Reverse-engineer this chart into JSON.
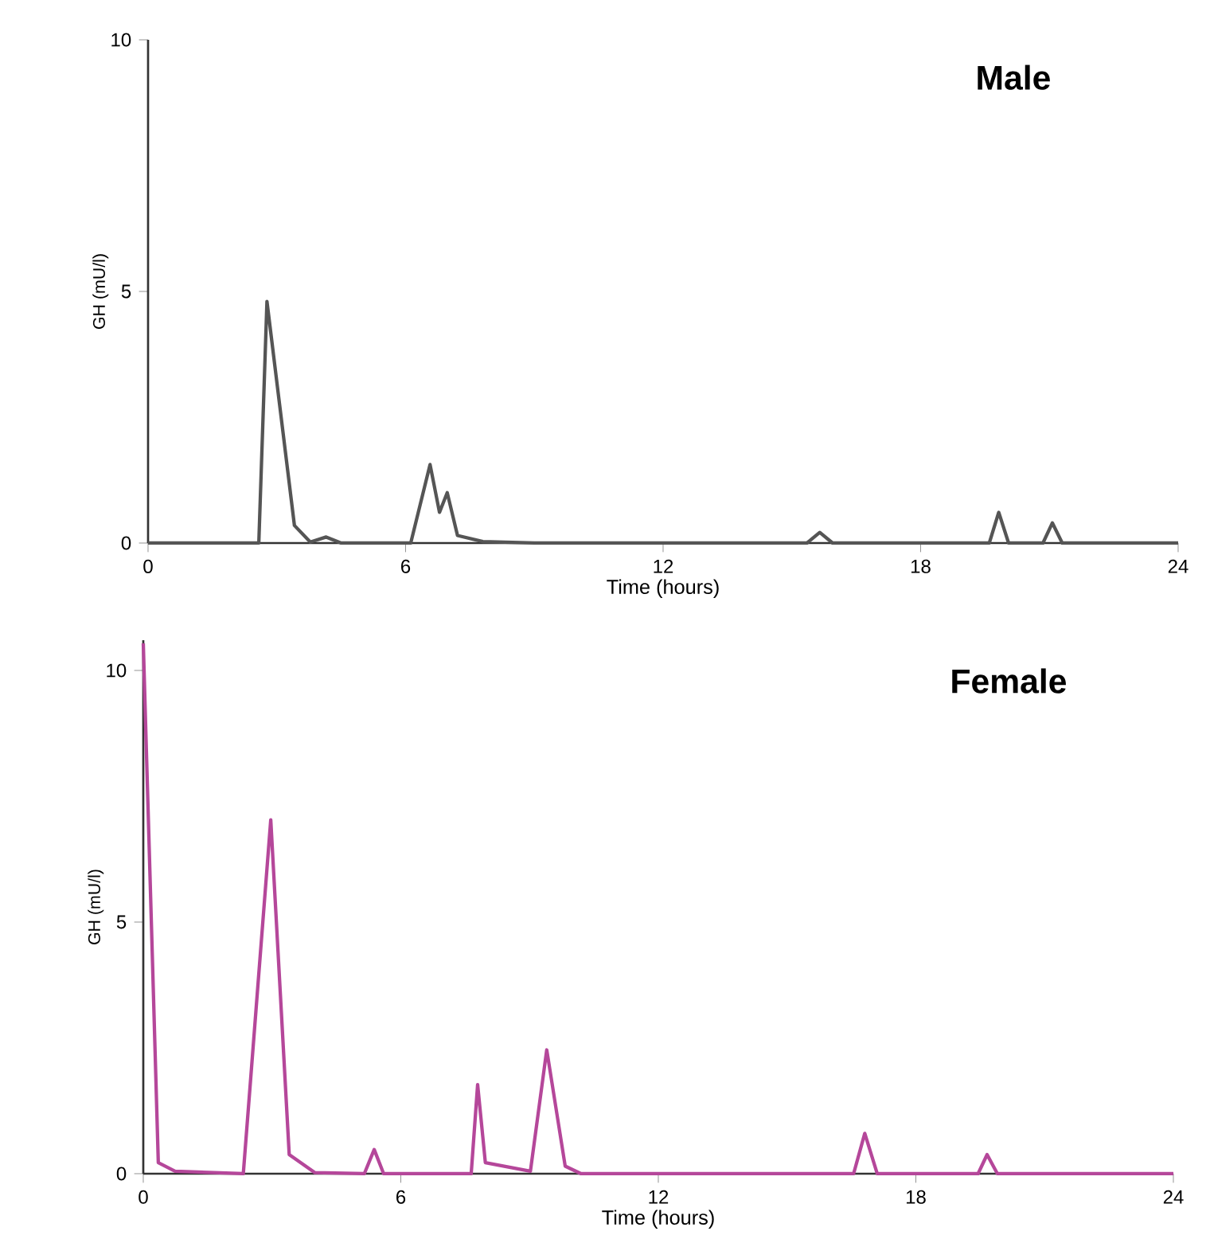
{
  "chart_data": [
    {
      "type": "line",
      "title": "Male",
      "xlabel": "Time (hours)",
      "ylabel": "GH (mU/l)",
      "x": [
        0,
        2.58,
        2.77,
        3.41,
        3.78,
        4.15,
        4.5,
        6.12,
        6.57,
        6.79,
        6.97,
        7.21,
        7.8,
        9,
        15.35,
        15.65,
        15.95,
        19.6,
        19.82,
        20.05,
        20.85,
        21.07,
        21.3,
        24
      ],
      "series": [
        {
          "color": "#555555",
          "values": [
            0,
            0,
            4.8,
            0.35,
            0.02,
            0.12,
            0,
            0,
            1.56,
            0.61,
            1.0,
            0.15,
            0.03,
            0,
            0,
            0.21,
            0,
            0,
            0.61,
            0,
            0,
            0.4,
            0,
            0
          ]
        }
      ],
      "xlim": [
        0,
        24
      ],
      "ylim": [
        0,
        10
      ],
      "xticks": [
        0,
        6,
        12,
        18,
        24
      ],
      "yticks": [
        0,
        5,
        10
      ]
    },
    {
      "type": "line",
      "title": "Female",
      "xlabel": "Time (hours)",
      "ylabel": "GH (mU/l)",
      "x": [
        0,
        0.35,
        0.74,
        2.33,
        2.97,
        3.4,
        4.0,
        5.15,
        5.38,
        5.6,
        7.64,
        7.79,
        7.97,
        9.02,
        9.4,
        9.83,
        10.2,
        16.55,
        16.81,
        17.1,
        19.45,
        19.66,
        19.9,
        24
      ],
      "series": [
        {
          "color": "#b5479a",
          "values": [
            10.54,
            0.22,
            0.05,
            0,
            7.03,
            0.38,
            0.02,
            0,
            0.48,
            0,
            0,
            1.77,
            0.22,
            0.05,
            2.46,
            0.15,
            0,
            0,
            0.8,
            0,
            0,
            0.38,
            0,
            0
          ]
        }
      ],
      "xlim": [
        0,
        24
      ],
      "ylim": [
        0,
        10.6
      ],
      "xticks": [
        0,
        6,
        12,
        18,
        24
      ],
      "yticks": [
        0,
        5,
        10
      ]
    }
  ]
}
